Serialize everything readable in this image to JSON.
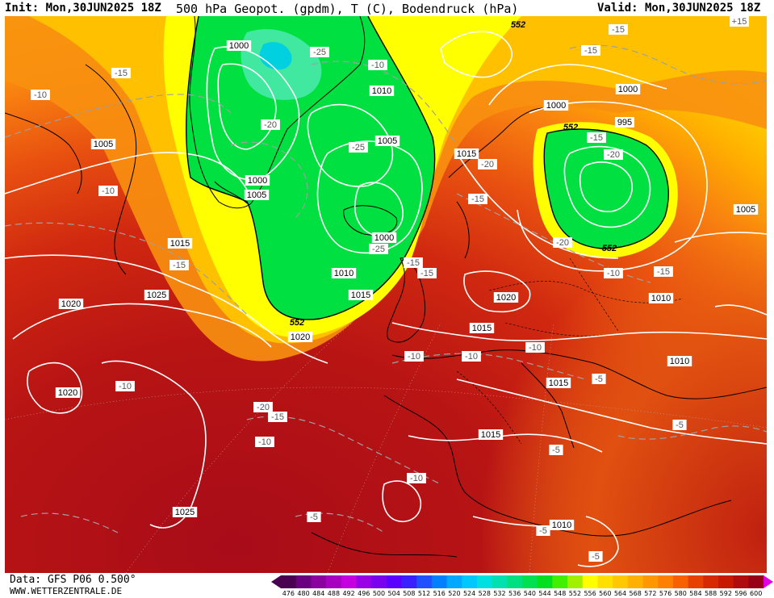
{
  "header": {
    "init": "Init: Mon,30JUN2025 18Z",
    "title": "500 hPa Geopot. (gpdm), T (C), Bodendruck (hPa)",
    "valid": "Valid: Mon,30JUN2025 18Z"
  },
  "footer": {
    "data": "Data: GFS P06 0.500°",
    "site": "WWW.WETTERZENTRALE.DE"
  },
  "legend": {
    "values": [
      "476",
      "480",
      "484",
      "488",
      "492",
      "496",
      "500",
      "504",
      "508",
      "512",
      "516",
      "520",
      "524",
      "528",
      "532",
      "536",
      "540",
      "544",
      "548",
      "552",
      "556",
      "560",
      "564",
      "568",
      "572",
      "576",
      "580",
      "584",
      "588",
      "592",
      "596",
      "600"
    ],
    "colors": [
      "#4a0050",
      "#6a0080",
      "#8c00a0",
      "#a800c0",
      "#c400e0",
      "#9a00e8",
      "#7a00f0",
      "#5a00ff",
      "#3a20ff",
      "#2050ff",
      "#0080ff",
      "#00a8ff",
      "#00c8ff",
      "#00e0e0",
      "#00e0b0",
      "#00e080",
      "#00e050",
      "#00e020",
      "#40f000",
      "#a0f000",
      "#ffff00",
      "#ffe000",
      "#ffc800",
      "#ffb000",
      "#ff9800",
      "#ff8000",
      "#f86000",
      "#e84000",
      "#d82800",
      "#c81800",
      "#b00c10",
      "#980018"
    ]
  },
  "map_colors": {
    "deep_red": "#a80c18",
    "red": "#c82010",
    "red_orange": "#e04810",
    "orange": "#f07010",
    "light_orange": "#f89010",
    "amber": "#ffb000",
    "gold": "#ffd000",
    "yellow": "#ffff00",
    "lime": "#a0f000",
    "green": "#00e040",
    "cyan": "#00d0e0"
  },
  "pressure_labels": [
    "1000",
    "1005",
    "1010",
    "1015",
    "1020",
    "1025",
    "995"
  ],
  "temperature_labels": [
    "-5",
    "-10",
    "-15",
    "-20",
    "-25",
    "+15"
  ],
  "geopotential_label": "552",
  "map_labels": [
    {
      "text": "1020",
      "kind": "pressure"
    },
    {
      "text": "552",
      "kind": "geopot"
    },
    {
      "text": "-15",
      "kind": "temp"
    },
    {
      "text": "+15",
      "kind": "temp"
    },
    {
      "text": "1000",
      "kind": "pressure"
    },
    {
      "text": "-25",
      "kind": "temp"
    },
    {
      "text": "-15",
      "kind": "temp"
    },
    {
      "text": "-15",
      "kind": "temp"
    },
    {
      "text": "-10",
      "kind": "temp"
    },
    {
      "text": "-10",
      "kind": "temp"
    },
    {
      "text": "1010",
      "kind": "pressure"
    },
    {
      "text": "1000",
      "kind": "pressure"
    },
    {
      "text": "1000",
      "kind": "pressure"
    },
    {
      "text": "995",
      "kind": "pressure"
    },
    {
      "text": "-20",
      "kind": "temp"
    },
    {
      "text": "552",
      "kind": "geopot"
    },
    {
      "text": "1005",
      "kind": "pressure"
    },
    {
      "text": "1005",
      "kind": "pressure"
    },
    {
      "text": "-25",
      "kind": "temp"
    },
    {
      "text": "1015",
      "kind": "pressure"
    },
    {
      "text": "-20",
      "kind": "temp"
    },
    {
      "text": "-15",
      "kind": "temp"
    },
    {
      "text": "-20",
      "kind": "temp"
    },
    {
      "text": "-10",
      "kind": "temp"
    },
    {
      "text": "1000",
      "kind": "pressure"
    },
    {
      "text": "1005",
      "kind": "pressure"
    },
    {
      "text": "-15",
      "kind": "temp"
    },
    {
      "text": "1005",
      "kind": "pressure"
    },
    {
      "text": "-20",
      "kind": "temp"
    },
    {
      "text": "552",
      "kind": "geopot"
    },
    {
      "text": "1015",
      "kind": "pressure"
    },
    {
      "text": "-15",
      "kind": "temp"
    },
    {
      "text": "1000",
      "kind": "pressure"
    },
    {
      "text": "-25",
      "kind": "temp"
    },
    {
      "text": "-15",
      "kind": "temp"
    },
    {
      "text": "-15",
      "kind": "temp"
    },
    {
      "text": "-10",
      "kind": "temp"
    },
    {
      "text": "1010",
      "kind": "pressure"
    },
    {
      "text": "-15",
      "kind": "temp"
    },
    {
      "text": "1020",
      "kind": "pressure"
    },
    {
      "text": "1020",
      "kind": "pressure"
    },
    {
      "text": "1025",
      "kind": "pressure"
    },
    {
      "text": "1015",
      "kind": "pressure"
    },
    {
      "text": "552",
      "kind": "geopot"
    },
    {
      "text": "1010",
      "kind": "pressure"
    },
    {
      "text": "1020",
      "kind": "pressure"
    },
    {
      "text": "1015",
      "kind": "pressure"
    },
    {
      "text": "-10",
      "kind": "temp"
    },
    {
      "text": "-10",
      "kind": "temp"
    },
    {
      "text": "-10",
      "kind": "temp"
    },
    {
      "text": "1015",
      "kind": "pressure"
    },
    {
      "text": "-5",
      "kind": "temp"
    },
    {
      "text": "1010",
      "kind": "pressure"
    },
    {
      "text": "1020",
      "kind": "pressure"
    },
    {
      "text": "-10",
      "kind": "temp"
    },
    {
      "text": "-20",
      "kind": "temp"
    },
    {
      "text": "-15",
      "kind": "temp"
    },
    {
      "text": "-10",
      "kind": "temp"
    },
    {
      "text": "1015",
      "kind": "pressure"
    },
    {
      "text": "-5",
      "kind": "temp"
    },
    {
      "text": "-5",
      "kind": "temp"
    },
    {
      "text": "-10",
      "kind": "temp"
    },
    {
      "text": "1025",
      "kind": "pressure"
    },
    {
      "text": "-5",
      "kind": "temp"
    },
    {
      "text": "-5",
      "kind": "temp"
    },
    {
      "text": "1010",
      "kind": "pressure"
    },
    {
      "text": "-5",
      "kind": "temp"
    }
  ]
}
